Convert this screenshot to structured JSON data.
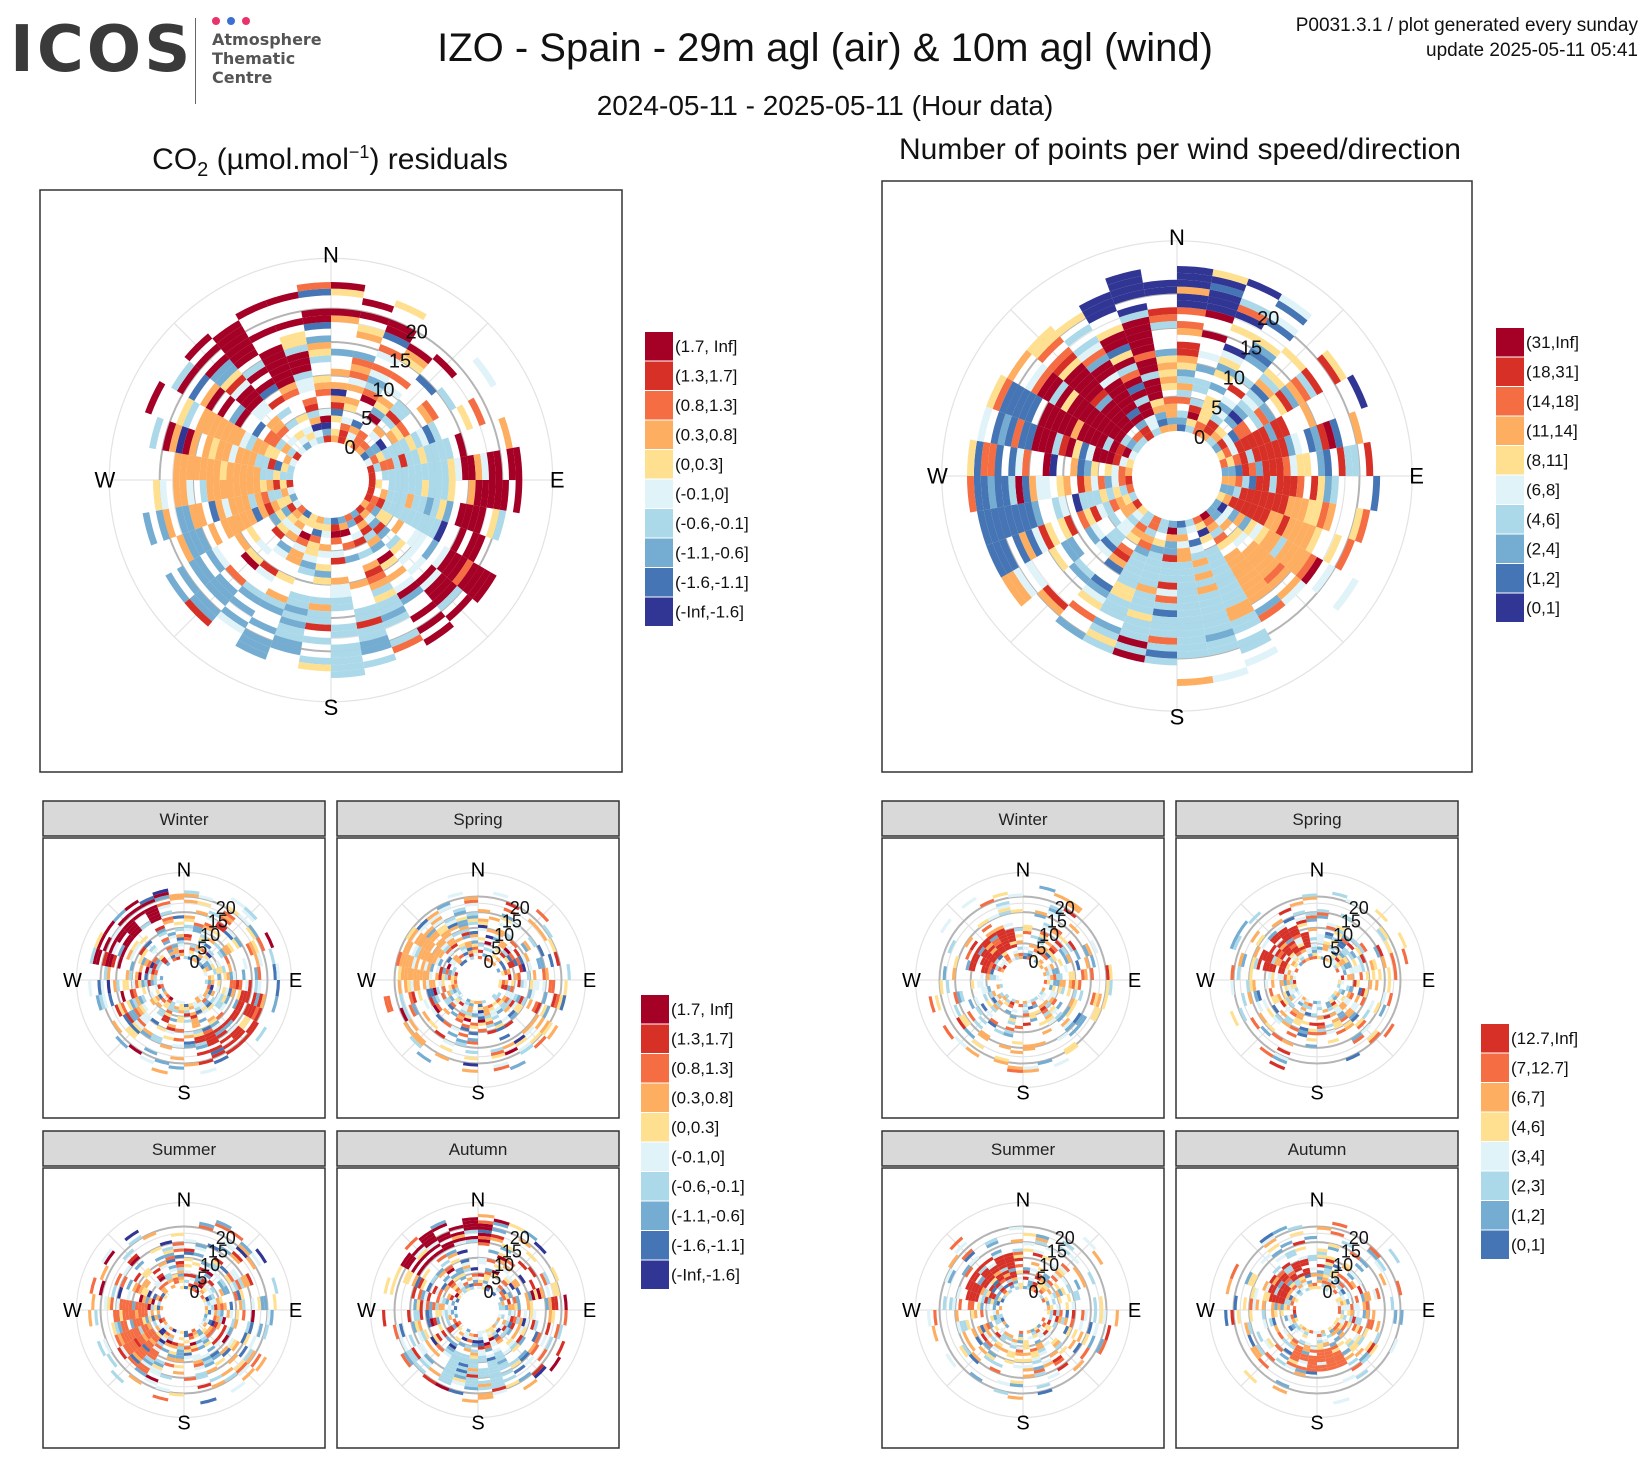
{
  "header": {
    "logo_text": "ICOS",
    "logo_sub": [
      "Atmosphere",
      "Thematic",
      "Centre"
    ],
    "logo_dot_colors": [
      "#e8336d",
      "#3b6fd4",
      "#e8336d"
    ],
    "title": "IZO - Spain - 29m agl (air) & 10m agl (wind)",
    "subtitle": "2024-05-11 - 2025-05-11 (Hour data)",
    "reference": "P0031.3.1 / plot generated every sunday",
    "update": "update  2025-05-11 05:41"
  },
  "panels": {
    "left_title": "CO",
    "left_title_sub": "2",
    "left_title_mid": " (µmol.mol",
    "left_title_sup": "−1",
    "left_title_end": ") residuals",
    "right_title": "Number of points per wind speed/direction"
  },
  "chart_data": [
    {
      "id": "co2_residuals_all",
      "type": "heatmap",
      "coord": "polar",
      "title": "CO2 (µmol.mol-1) residuals",
      "compass": [
        "N",
        "E",
        "S",
        "W"
      ],
      "speed_ticks": [
        0,
        5,
        10,
        15,
        20
      ],
      "legend_entries": [
        "(1.7, Inf]",
        "(1.3,1.7]",
        "(0.8,1.3]",
        "(0.3,0.8]",
        "(0,0.3]",
        "(-0.1,0]",
        "(-0.6,-0.1]",
        "(-1.1,-0.6]",
        "(-1.6,-1.1]",
        "(-Inf,-1.6]"
      ],
      "legend_colors": [
        "#a50026",
        "#d73027",
        "#f46d43",
        "#fdae61",
        "#fee090",
        "#e0f3f8",
        "#abd9e9",
        "#74add1",
        "#4575b4",
        "#313695"
      ],
      "dominant_sectors": [
        {
          "direction": "NW",
          "speed_range": [
            10,
            24
          ],
          "class": "(1.7, Inf]"
        },
        {
          "direction": "N",
          "speed_range": [
            18,
            24
          ],
          "class": "(1.7, Inf]"
        },
        {
          "direction": "ESE",
          "speed_range": [
            14,
            22
          ],
          "class": "(1.7, Inf]"
        },
        {
          "direction": "W",
          "speed_range": [
            5,
            18
          ],
          "class": "(0.3,0.8]"
        },
        {
          "direction": "E",
          "speed_range": [
            3,
            12
          ],
          "class": "(-0.6,-0.1]"
        },
        {
          "direction": "S",
          "speed_range": [
            12,
            22
          ],
          "class": "(-0.6,-0.1]"
        },
        {
          "direction": "SW",
          "speed_range": [
            15,
            22
          ],
          "class": "(-1.1,-0.6]"
        }
      ]
    },
    {
      "id": "counts_all",
      "type": "heatmap",
      "coord": "polar",
      "title": "Number of points per wind speed/direction",
      "compass": [
        "N",
        "E",
        "S",
        "W"
      ],
      "speed_ticks": [
        0,
        5,
        10,
        15,
        20
      ],
      "legend_entries": [
        "(31,Inf]",
        "(18,31]",
        "(14,18]",
        "(11,14]",
        "(8,11]",
        "(6,8]",
        "(4,6]",
        "(2,4]",
        "(1,2]",
        "(0,1]"
      ],
      "legend_colors": [
        "#a50026",
        "#d73027",
        "#f46d43",
        "#fdae61",
        "#fee090",
        "#e0f3f8",
        "#abd9e9",
        "#74add1",
        "#4575b4",
        "#313695"
      ],
      "dominant_sectors": [
        {
          "direction": "NW",
          "speed_range": [
            3,
            16
          ],
          "class": "(31,Inf]"
        },
        {
          "direction": "E",
          "speed_range": [
            3,
            10
          ],
          "class": "(18,31]"
        },
        {
          "direction": "SE",
          "speed_range": [
            8,
            14
          ],
          "class": "(11,14]"
        },
        {
          "direction": "S",
          "speed_range": [
            5,
            20
          ],
          "class": "(4,6]"
        },
        {
          "direction": "W",
          "speed_range": [
            15,
            22
          ],
          "class": "(1,2]"
        },
        {
          "direction": "N",
          "speed_range": [
            18,
            24
          ],
          "class": "(0,1]"
        }
      ]
    },
    {
      "id": "co2_residuals_seasonal",
      "type": "heatmap",
      "coord": "polar",
      "facets": [
        "Winter",
        "Spring",
        "Summer",
        "Autumn"
      ],
      "compass": [
        "N",
        "E",
        "S",
        "W"
      ],
      "speed_ticks": [
        0,
        5,
        10,
        15,
        20
      ],
      "legend_entries": [
        "(1.7, Inf]",
        "(1.3,1.7]",
        "(0.8,1.3]",
        "(0.3,0.8]",
        "(0,0.3]",
        "(-0.1,0]",
        "(-0.6,-0.1]",
        "(-1.1,-0.6]",
        "(-1.6,-1.1]",
        "(-Inf,-1.6]"
      ],
      "legend_colors": [
        "#a50026",
        "#d73027",
        "#f46d43",
        "#fdae61",
        "#fee090",
        "#e0f3f8",
        "#abd9e9",
        "#74add1",
        "#4575b4",
        "#313695"
      ]
    },
    {
      "id": "counts_seasonal",
      "type": "heatmap",
      "coord": "polar",
      "facets": [
        "Winter",
        "Spring",
        "Summer",
        "Autumn"
      ],
      "compass": [
        "N",
        "E",
        "S",
        "W"
      ],
      "speed_ticks": [
        0,
        5,
        10,
        15,
        20
      ],
      "legend_entries": [
        "(12.7,Inf]",
        "(7,12.7]",
        "(6,7]",
        "(4,6]",
        "(3,4]",
        "(2,3]",
        "(1,2]",
        "(0,1]"
      ],
      "legend_colors": [
        "#d73027",
        "#f46d43",
        "#fdae61",
        "#fee090",
        "#e0f3f8",
        "#abd9e9",
        "#74add1",
        "#4575b4"
      ]
    }
  ]
}
